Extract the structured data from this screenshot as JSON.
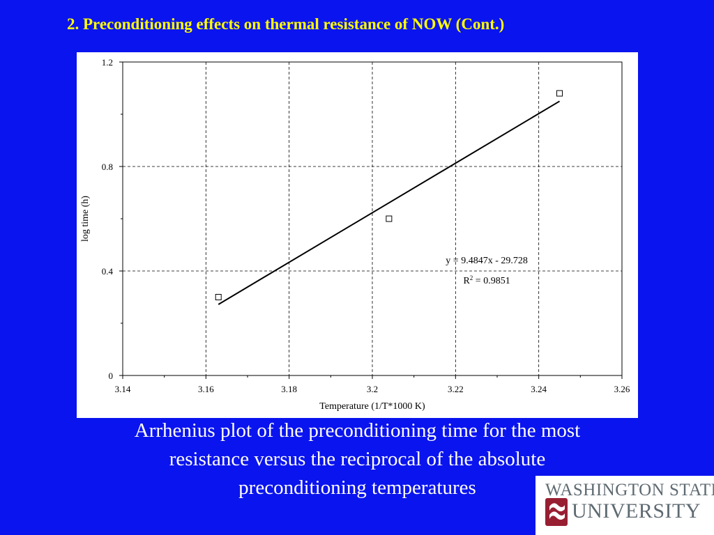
{
  "slide": {
    "title": "2. Preconditioning effects on thermal resistance of NOW (Cont.)",
    "caption_lines": [
      "Arrhenius plot of the preconditioning time for the most",
      "resistance versus the reciprocal of the absolute",
      "preconditioning temperatures"
    ]
  },
  "logo": {
    "line1": "WASHINGTON STATE",
    "line2": "UNIVERSITY",
    "accent_color": "#981e32",
    "gray_color": "#5e6a71"
  },
  "colors": {
    "background": "#0a14ee",
    "title": "#ffff00",
    "caption": "#ffffff",
    "chart_background": "#ffffff"
  },
  "chart_data": {
    "type": "scatter",
    "title": "",
    "xlabel": "Temperature (1/T*1000 K)",
    "ylabel": "log time (h)",
    "xlim": [
      3.14,
      3.26
    ],
    "ylim": [
      0,
      1.2
    ],
    "x_ticks": [
      3.14,
      3.16,
      3.18,
      3.2,
      3.22,
      3.24,
      3.26
    ],
    "x_tick_labels": [
      "3.14",
      "3.16",
      "3.18",
      "3.2",
      "3.22",
      "3.24",
      "3.26"
    ],
    "y_ticks": [
      0,
      0.4,
      0.8,
      1.2
    ],
    "y_tick_labels": [
      "0",
      "0.4",
      "0.8",
      "1.2"
    ],
    "grid": true,
    "grid_style": "dashed",
    "legend": "none",
    "series": [
      {
        "marker": "open-square",
        "points": [
          {
            "x": 3.163,
            "y": 0.3
          },
          {
            "x": 3.204,
            "y": 0.6
          },
          {
            "x": 3.245,
            "y": 1.08
          }
        ]
      }
    ],
    "trendline": {
      "slope": 9.4847,
      "intercept": -29.728,
      "x_range": [
        3.163,
        3.245
      ],
      "equation_label": "y = 9.4847x - 29.728",
      "r2_prefix": "R",
      "r2_sup": "2",
      "r2_value": " = 0.9851"
    }
  }
}
